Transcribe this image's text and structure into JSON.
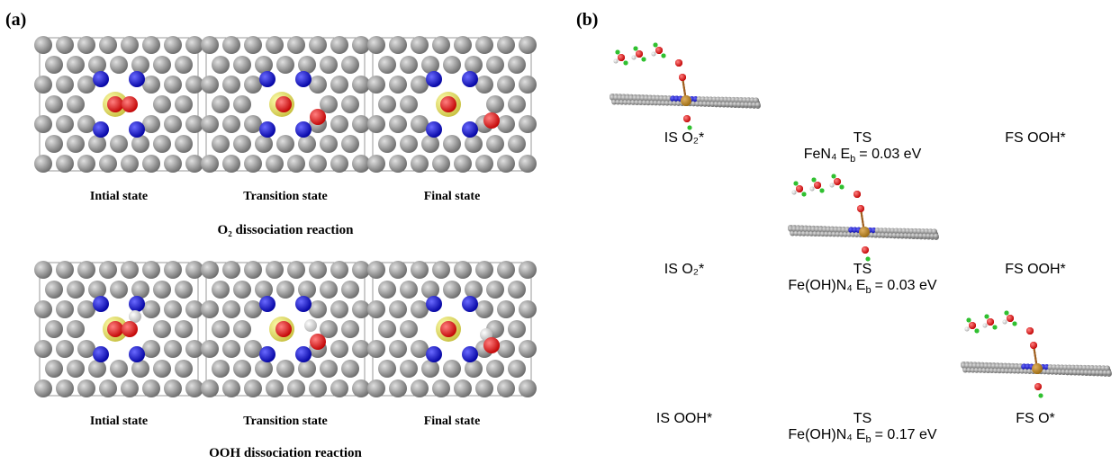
{
  "panel_a": {
    "label": "(a)",
    "rows": [
      {
        "states": [
          "Intial state",
          "Transition state",
          "Final state"
        ],
        "reaction": "O₂ dissociation reaction"
      },
      {
        "states": [
          "Intial state",
          "Transition state",
          "Final state"
        ],
        "reaction": "OOH dissociation reaction"
      }
    ]
  },
  "panel_b": {
    "label": "(b)",
    "rows": [
      {
        "states": [
          "IS O₂*",
          "TS",
          "FS OOH*"
        ],
        "caption": {
          "material": "FeN₄",
          "symbol": "E",
          "subscript": "b",
          "value": "= 0.03 eV"
        }
      },
      {
        "states": [
          "IS O₂*",
          "TS",
          "FS OOH*"
        ],
        "caption": {
          "material": "Fe(OH)N₄",
          "symbol": "E",
          "subscript": "b",
          "value": "= 0.03 eV"
        }
      },
      {
        "states": [
          "IS OOH*",
          "TS",
          "FS O*"
        ],
        "caption": {
          "material": "Fe(OH)N₄",
          "symbol": "E",
          "subscript": "b",
          "value": "= 0.17 eV"
        }
      }
    ]
  }
}
